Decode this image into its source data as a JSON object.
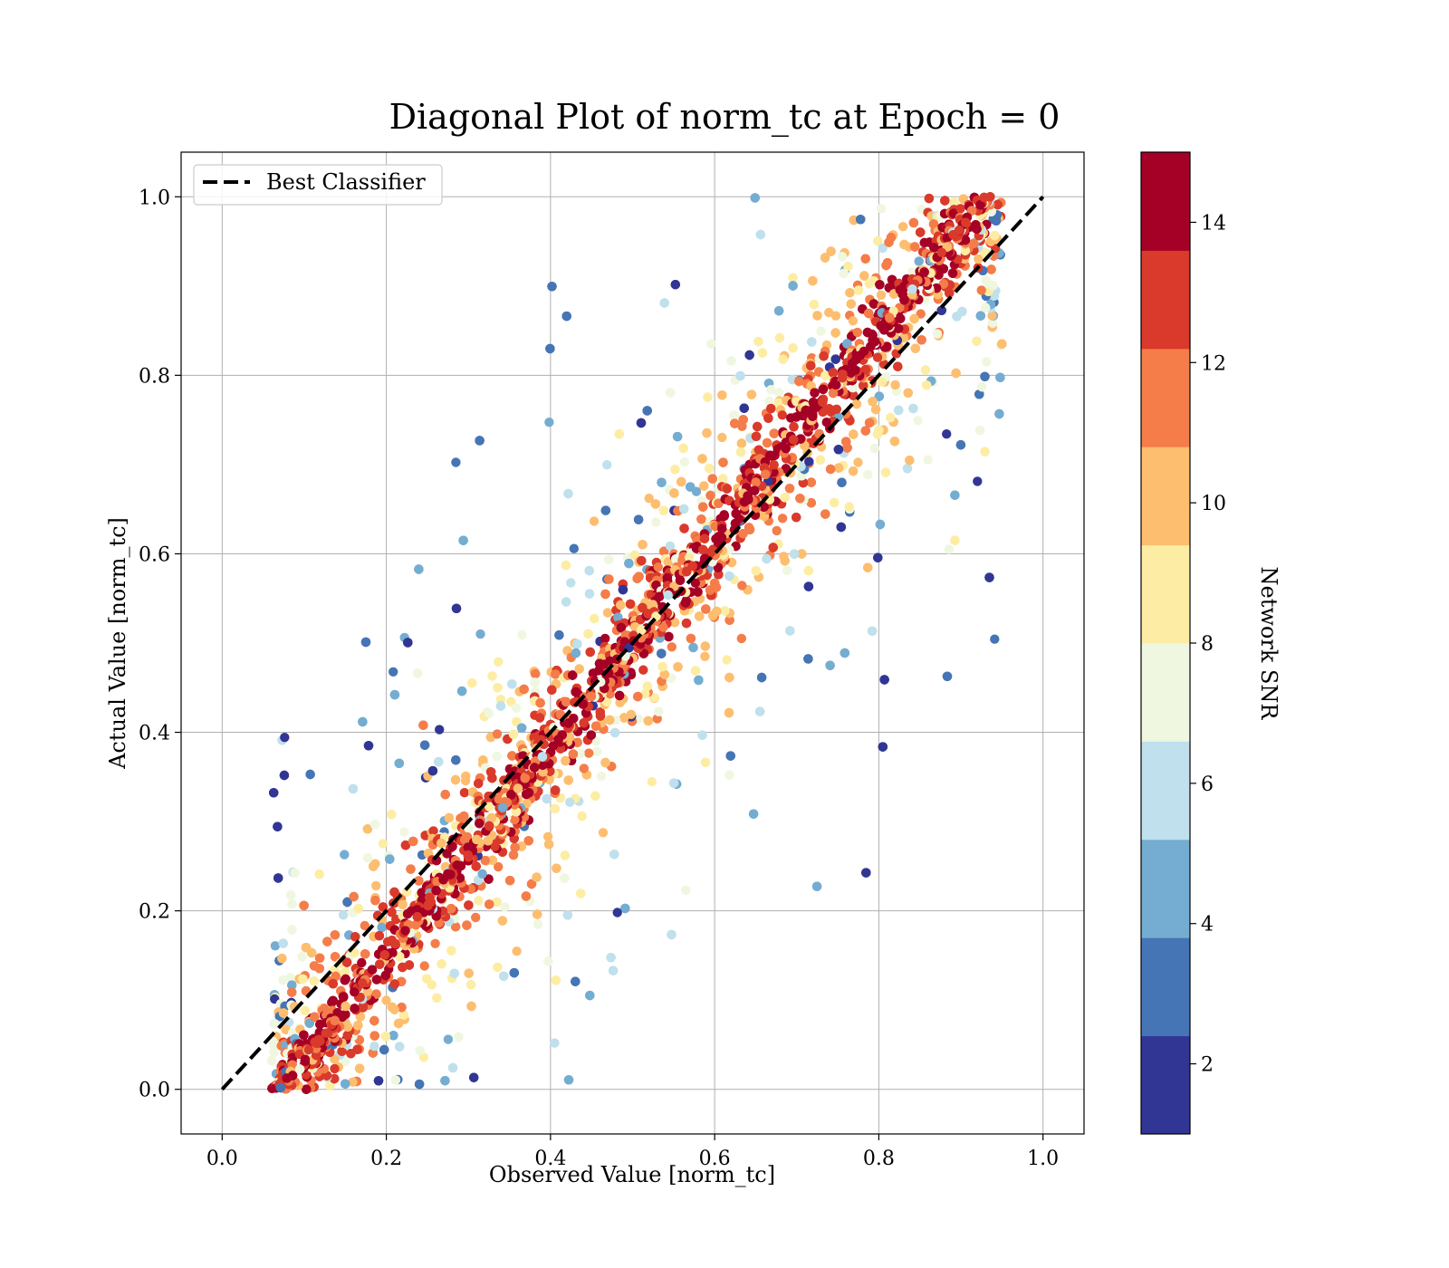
{
  "chart_data": {
    "type": "scatter",
    "title": "Diagonal Plot of norm_tc at Epoch = 0",
    "xlabel": "Observed Value [norm_tc]",
    "ylabel": "Actual Value [norm_tc]",
    "xlim": [
      -0.05,
      1.05
    ],
    "ylim": [
      -0.05,
      1.05
    ],
    "x_ticks": [
      "0.0",
      "0.2",
      "0.4",
      "0.6",
      "0.8",
      "1.0"
    ],
    "y_ticks": [
      "0.0",
      "0.2",
      "0.4",
      "0.6",
      "0.8",
      "1.0"
    ],
    "grid": true,
    "legend": {
      "placement": "top-left",
      "entries": [
        {
          "label": "Best Classifier",
          "style": "dashed",
          "color": "#000000"
        }
      ]
    },
    "reference_line": {
      "name": "Best Classifier",
      "x": [
        0.0,
        1.0
      ],
      "y": [
        0.0,
        1.0
      ],
      "style": "dashed",
      "color": "#000000"
    },
    "colorbar": {
      "label": "Network SNR",
      "range": [
        1,
        15
      ],
      "ticks": [
        "2",
        "4",
        "6",
        "8",
        "10",
        "12",
        "14"
      ],
      "tick_values": [
        2,
        4,
        6,
        8,
        10,
        12,
        14
      ],
      "colormap": "RdYlBu_r",
      "bins": [
        "#313695",
        "#4575b4",
        "#74add1",
        "#abd9e9",
        "#e0f3f8",
        "#ffffbf",
        "#fee090",
        "#fdae61",
        "#f46d43",
        "#d73027",
        "#a50026"
      ]
    },
    "colormap_colors": [
      "#313695",
      "#4575b4",
      "#74add1",
      "#bfe0ec",
      "#eff7e0",
      "#fdeda4",
      "#fdbe6f",
      "#f47d4a",
      "#d93a2b",
      "#a50026"
    ]
  }
}
